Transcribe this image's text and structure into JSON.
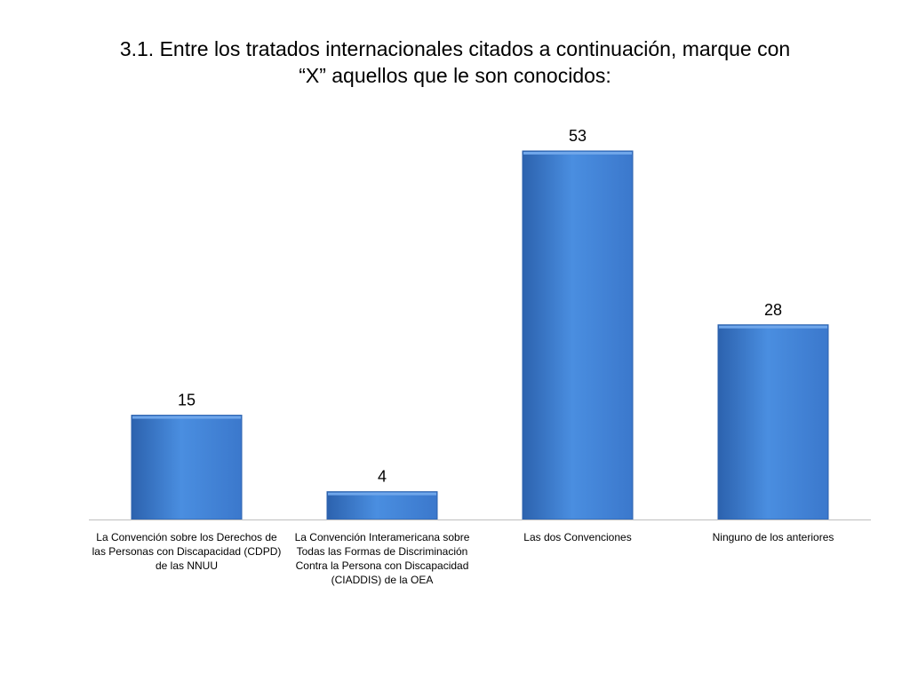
{
  "chart_data": {
    "type": "bar",
    "title_lines": [
      "3.1. Entre los tratados internacionales citados a continuación, marque con",
      "“X” aquellos que le son conocidos:"
    ],
    "categories": [
      {
        "lines": [
          "La Convención sobre los Derechos de",
          "las Personas con Discapacidad (CDPD)",
          "de las NNUU"
        ]
      },
      {
        "lines": [
          "La Convención  Interamericana sobre",
          "Todas las Formas de Discriminación",
          "Contra la Persona con Discapacidad",
          "(CIADDIS) de la OEA"
        ]
      },
      {
        "lines": [
          "Las dos Convenciones"
        ]
      },
      {
        "lines": [
          "Ninguno de los anteriores"
        ]
      }
    ],
    "values": [
      15,
      4,
      53,
      28
    ],
    "data_labels": [
      "15",
      "4",
      "53",
      "28"
    ],
    "ylim": [
      0,
      53
    ],
    "grid": false,
    "legend": "none",
    "bar_color": "#3b78cc",
    "bar_color_light": "#4a8ee0",
    "bar_color_dark": "#2c62ae",
    "axis_color": "#bfbfbf"
  }
}
